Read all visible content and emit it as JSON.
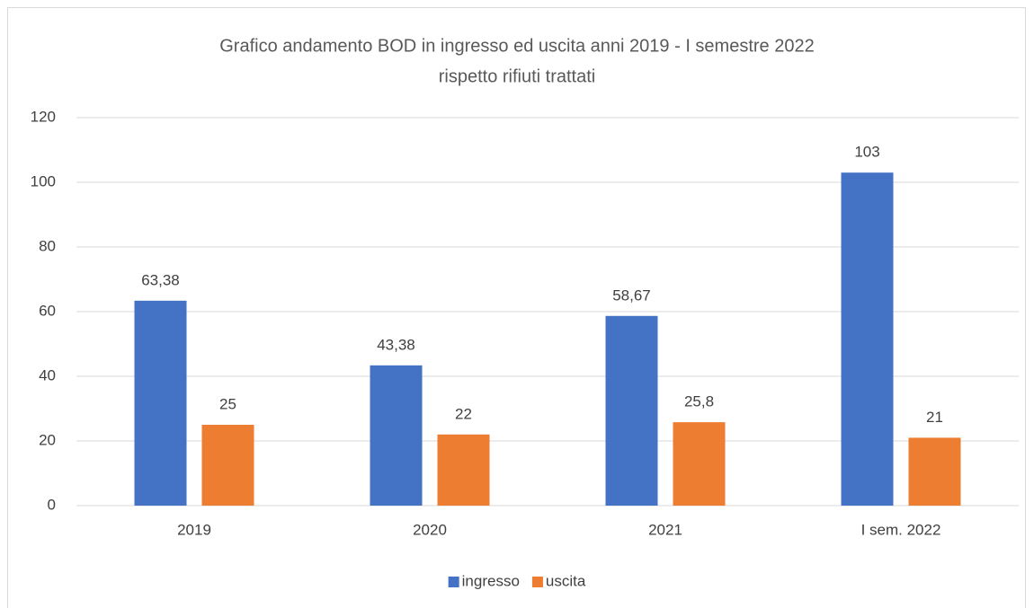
{
  "chart_data": {
    "type": "bar",
    "title": [
      "Grafico andamento BOD in ingresso ed uscita anni 2019 - I semestre 2022",
      "rispetto rifiuti trattati"
    ],
    "categories": [
      "2019",
      "2020",
      "2021",
      "I sem. 2022"
    ],
    "series": [
      {
        "name": "ingresso",
        "color": "#4472c4",
        "values": [
          63.38,
          43.38,
          58.67,
          103
        ],
        "value_labels": [
          "63,38",
          "43,38",
          "58,67",
          "103"
        ]
      },
      {
        "name": "uscita",
        "color": "#ed7d31",
        "values": [
          25,
          22,
          25.8,
          21
        ],
        "value_labels": [
          "25",
          "22",
          "25,8",
          "21"
        ]
      }
    ],
    "ylim": [
      0,
      120
    ],
    "yticks": [
      0,
      20,
      40,
      60,
      80,
      100,
      120
    ],
    "grid": true,
    "legend": "bottom"
  }
}
